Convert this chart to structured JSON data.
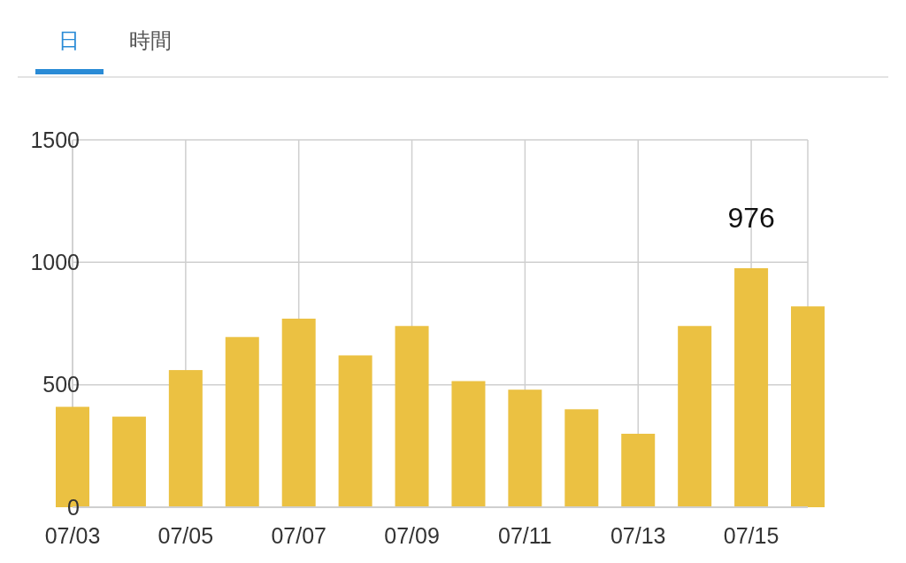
{
  "chart_data": {
    "type": "bar",
    "annotations": [
      "日",
      "時間"
    ],
    "categories": [
      "07/03",
      null,
      "07/05",
      null,
      "07/07",
      null,
      "07/09",
      null,
      "07/11",
      null,
      "07/13",
      null,
      "07/15",
      null
    ],
    "values": [
      410,
      370,
      560,
      695,
      770,
      620,
      740,
      515,
      480,
      400,
      300,
      740,
      976,
      820
    ],
    "value_labels": [
      null,
      null,
      null,
      null,
      null,
      null,
      null,
      null,
      null,
      null,
      null,
      null,
      "976",
      null
    ],
    "color": "#ebc142",
    "ylim": [
      0,
      1500
    ],
    "yticks": [
      0,
      500,
      1000,
      1500
    ],
    "grid": true
  }
}
